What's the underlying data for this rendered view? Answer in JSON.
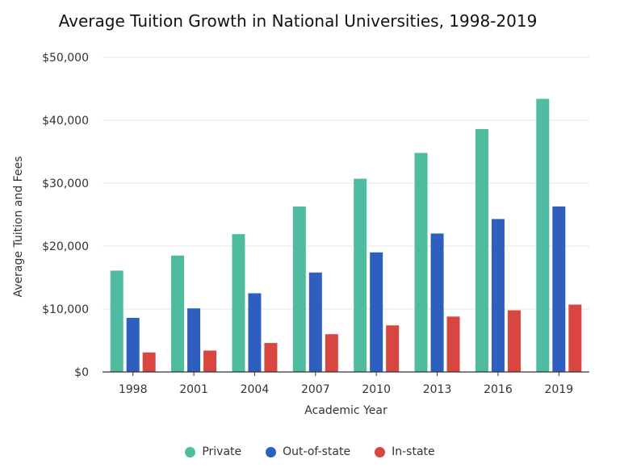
{
  "chart_data": {
    "type": "bar",
    "title": "Average Tuition Growth in National Universities, 1998-2019",
    "xlabel": "Academic Year",
    "ylabel": "Average Tuition and Fees",
    "categories": [
      "1998",
      "2001",
      "2004",
      "2007",
      "2010",
      "2013",
      "2016",
      "2019"
    ],
    "ylim": [
      0,
      50000
    ],
    "yticks": [
      0,
      10000,
      20000,
      30000,
      40000,
      50000
    ],
    "ytick_labels": [
      "$0",
      "$10,000",
      "$20,000",
      "$30,000",
      "$40,000",
      "$50,000"
    ],
    "grid": true,
    "legend_position": "bottom",
    "series": [
      {
        "name": "Private",
        "color": "#4fbc9f",
        "values": [
          16100,
          18500,
          21900,
          26300,
          30700,
          34800,
          38600,
          43400
        ]
      },
      {
        "name": "Out-of-state",
        "color": "#2e5fbf",
        "values": [
          8600,
          10100,
          12500,
          15800,
          19000,
          22000,
          24300,
          26300
        ]
      },
      {
        "name": "In-state",
        "color": "#d9453f",
        "values": [
          3100,
          3400,
          4600,
          6000,
          7400,
          8800,
          9800,
          10700
        ]
      }
    ]
  }
}
